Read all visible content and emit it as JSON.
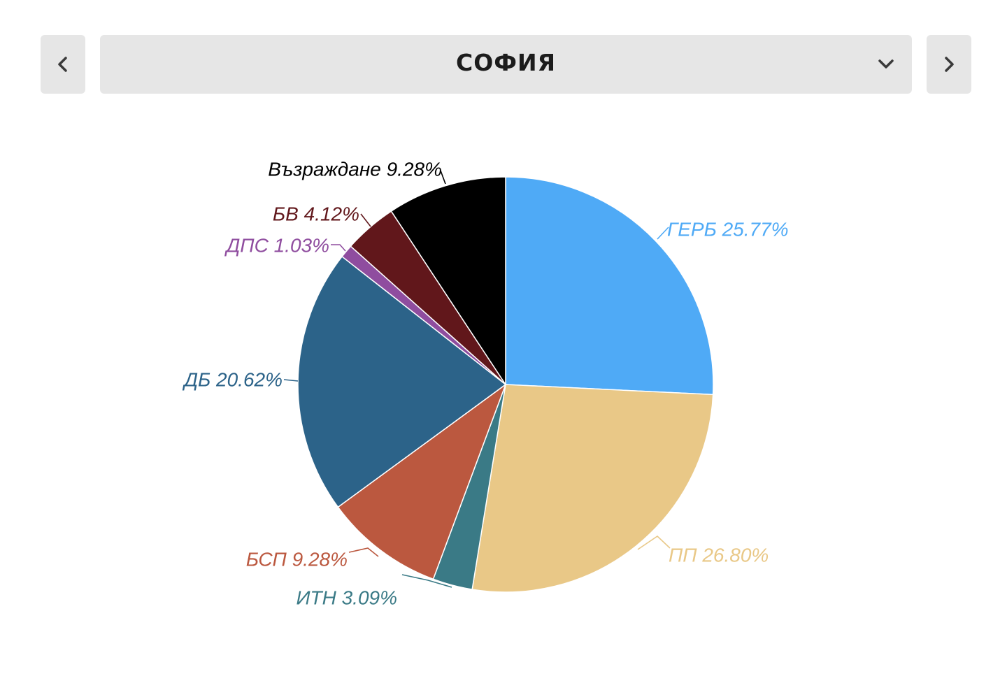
{
  "header": {
    "region": "СОФИЯ",
    "prev_icon": "chevron-left-icon",
    "next_icon": "chevron-right-icon",
    "dropdown_icon": "chevron-down-icon"
  },
  "chart_data": {
    "type": "pie",
    "title": "",
    "slices": [
      {
        "name": "ГЕРБ",
        "value": 25.77,
        "label": "ГЕРБ 25.77%",
        "color": "#4faaf6"
      },
      {
        "name": "ПП",
        "value": 26.8,
        "label": "ПП 26.80%",
        "color": "#e9c887"
      },
      {
        "name": "ИТН",
        "value": 3.09,
        "label": "ИТН 3.09%",
        "color": "#3a7a86"
      },
      {
        "name": "БСП",
        "value": 9.28,
        "label": "БСП 9.28%",
        "color": "#bb583f"
      },
      {
        "name": "ДБ",
        "value": 20.62,
        "label": "ДБ 20.62%",
        "color": "#2c6389"
      },
      {
        "name": "ДПС",
        "value": 1.03,
        "label": "ДПС 1.03%",
        "color": "#8f4d9f"
      },
      {
        "name": "БВ",
        "value": 4.12,
        "label": "БВ 4.12%",
        "color": "#61171b"
      },
      {
        "name": "Възраждане",
        "value": 9.28,
        "label": "Възраждане 9.28%",
        "color": "#000000"
      }
    ]
  }
}
